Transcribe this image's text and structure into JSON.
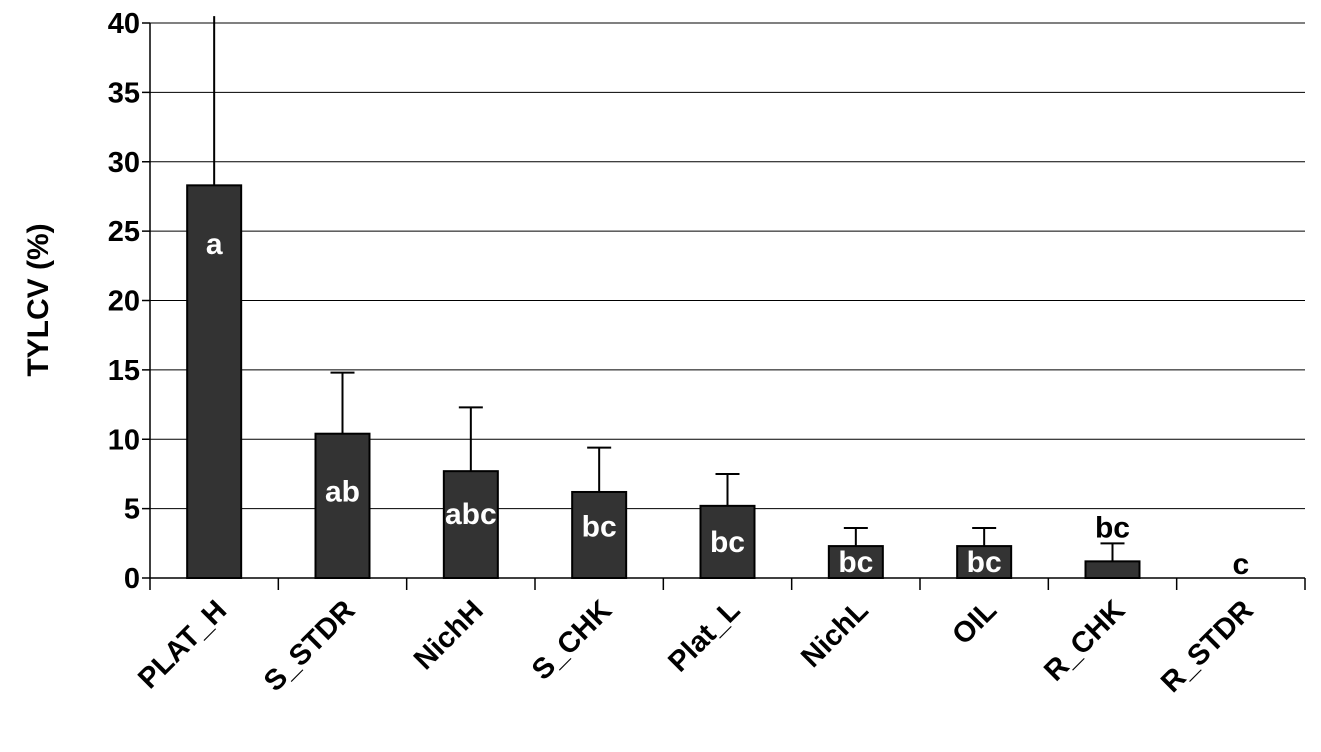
{
  "chart_data": {
    "type": "bar",
    "title": "",
    "xlabel": "",
    "ylabel": "TYLCV (%)",
    "ylim": [
      0,
      40
    ],
    "yticks": [
      0,
      5,
      10,
      15,
      20,
      25,
      30,
      35,
      40
    ],
    "grid": true,
    "categories": [
      "PLAT_H",
      "S_STDR",
      "NichH",
      "S_CHK",
      "Plat_L",
      "NichL",
      "OIL",
      "R_CHK",
      "R_STDR"
    ],
    "values": [
      28.3,
      10.4,
      7.7,
      6.2,
      5.2,
      2.3,
      2.3,
      1.2,
      0
    ],
    "error_upper": [
      12.2,
      4.4,
      4.6,
      3.2,
      2.3,
      1.3,
      1.3,
      1.3,
      0
    ],
    "group_letters": [
      "a",
      "ab",
      "abc",
      "bc",
      "bc",
      "bc",
      "bc",
      "bc",
      "c"
    ],
    "colors": {
      "bar_fill": "#333333",
      "bar_stroke": "#000000",
      "gridline": "#000000",
      "label_inside": "#ffffff",
      "label_outside": "#000000"
    }
  }
}
